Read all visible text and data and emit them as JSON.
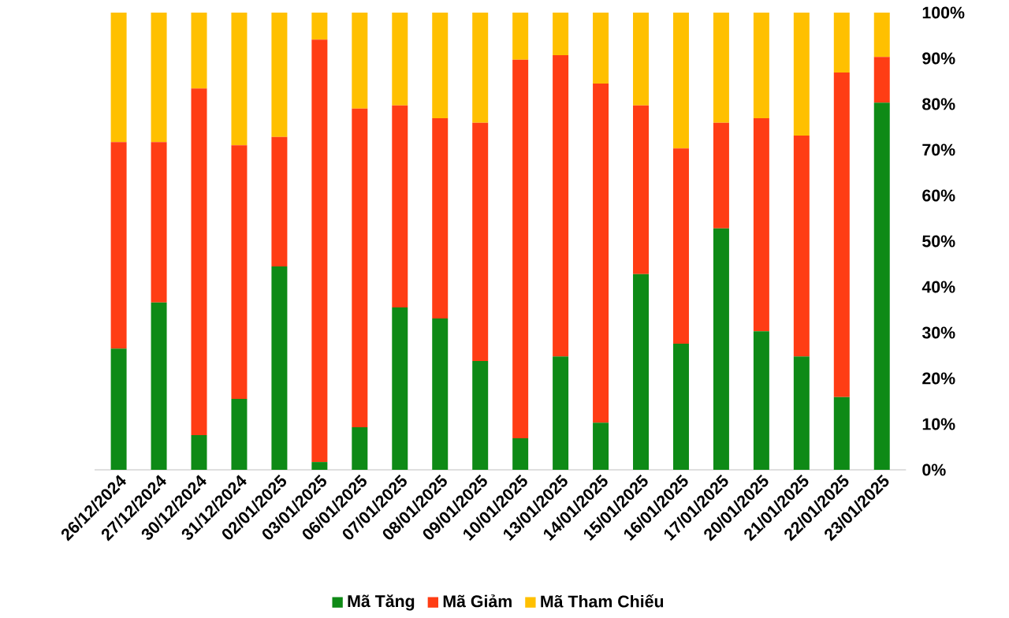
{
  "chart_data": {
    "type": "bar",
    "stacked": true,
    "categories": [
      "26/12/2024",
      "27/12/2024",
      "30/12/2024",
      "31/12/2024",
      "02/01/2025",
      "03/01/2025",
      "06/01/2025",
      "07/01/2025",
      "08/01/2025",
      "09/01/2025",
      "10/01/2025",
      "13/01/2025",
      "14/01/2025",
      "15/01/2025",
      "16/01/2025",
      "17/01/2025",
      "20/01/2025",
      "21/01/2025",
      "22/01/2025",
      "23/01/2025"
    ],
    "series": [
      {
        "name": "Mã Tăng",
        "color": "#0e8a16",
        "values": [
          26.5,
          36.6,
          7.6,
          15.5,
          44.5,
          1.7,
          9.3,
          35.5,
          33.1,
          23.8,
          6.9,
          24.8,
          10.3,
          42.8,
          27.6,
          52.8,
          30.3,
          24.8,
          15.9,
          80.3
        ]
      },
      {
        "name": "Mã Giảm",
        "color": "#ff3d14",
        "values": [
          45.2,
          35.1,
          75.8,
          55.5,
          28.3,
          92.4,
          69.7,
          44.2,
          43.8,
          52.1,
          82.8,
          65.9,
          74.2,
          36.9,
          42.7,
          23.1,
          46.6,
          48.3,
          71.0,
          10.0
        ]
      },
      {
        "name": "Mã Tham Chiếu",
        "color": "#ffc000",
        "values": [
          28.3,
          28.3,
          16.6,
          29.0,
          27.2,
          5.9,
          21.0,
          20.3,
          23.1,
          24.1,
          10.3,
          9.3,
          15.5,
          20.3,
          29.7,
          24.1,
          23.1,
          26.9,
          13.1,
          9.7
        ]
      }
    ],
    "ylim": [
      0,
      100
    ],
    "yticks": [
      {
        "value": 0,
        "label": "0%"
      },
      {
        "value": 10,
        "label": "10%"
      },
      {
        "value": 20,
        "label": "20%"
      },
      {
        "value": 30,
        "label": "30%"
      },
      {
        "value": 40,
        "label": "40%"
      },
      {
        "value": 50,
        "label": "50%"
      },
      {
        "value": 60,
        "label": "60%"
      },
      {
        "value": 70,
        "label": "70%"
      },
      {
        "value": 80,
        "label": "80%"
      },
      {
        "value": 90,
        "label": "90%"
      },
      {
        "value": 100,
        "label": "100%"
      }
    ],
    "grid": false,
    "legend": "bottom"
  }
}
